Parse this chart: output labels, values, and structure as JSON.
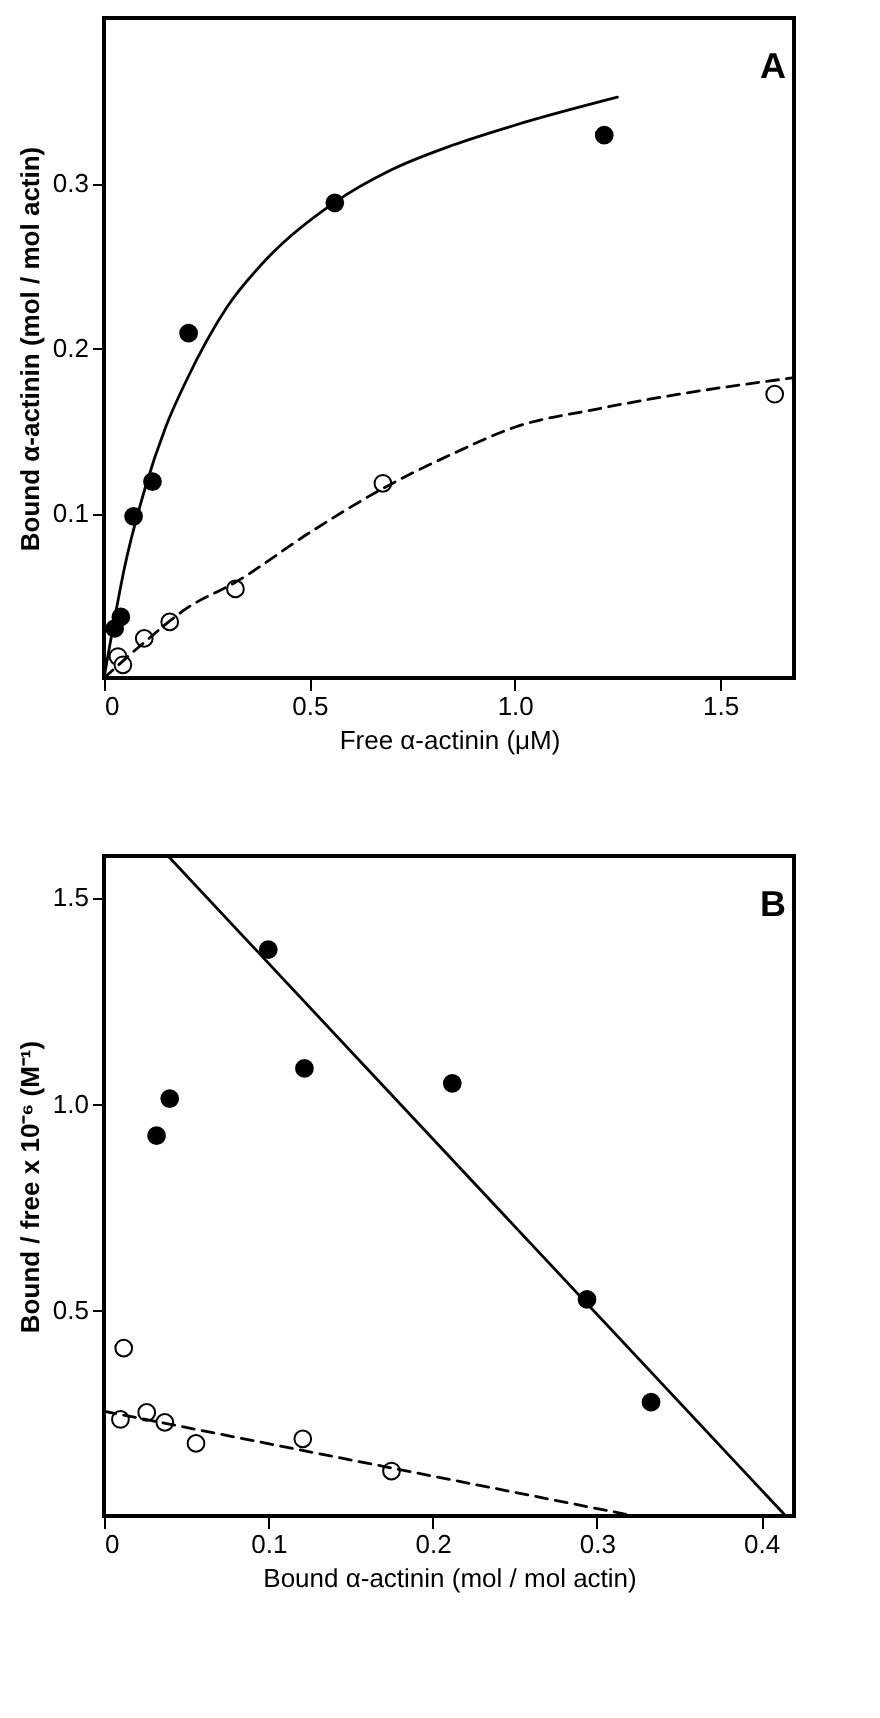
{
  "chart_data": [
    {
      "type": "scatter",
      "xlabel": "Free α-actinin (μM)",
      "ylabel": "Bound α-actinin (mol / mol actin)",
      "annotations": [
        "A"
      ],
      "xlim": [
        0,
        1.68
      ],
      "ylim": [
        0,
        0.4
      ],
      "xticks": [
        0,
        {
          "value": 0.5,
          "label": "0.5"
        },
        {
          "value": 1,
          "label": "1.0"
        },
        {
          "value": 1.5,
          "label": "1.5"
        }
      ],
      "yticks": [
        0.1,
        0.2,
        0.3
      ],
      "grid": false,
      "series": [
        {
          "marker": "circle",
          "color": "#000000",
          "x": [
            0.026,
            0.041,
            0.072,
            0.118,
            0.206,
            0.562,
            1.218
          ],
          "values": [
            0.03,
            0.037,
            0.098,
            0.119,
            0.209,
            0.288,
            0.329
          ]
        },
        {
          "marker": "circle",
          "color": "#ffffff",
          "x": [
            0.034,
            0.046,
            0.098,
            0.16,
            0.32,
            0.679,
            1.633
          ],
          "values": [
            0.013,
            0.008,
            0.024,
            0.034,
            0.054,
            0.118,
            0.172
          ]
        },
        {
          "type": "line",
          "marker": "none",
          "line_style": "solid",
          "color": "#000000",
          "x": [
            0,
            0.02,
            0.05,
            0.1,
            0.15,
            0.2,
            0.3,
            0.4,
            0.56,
            0.7,
            0.85,
            1.0,
            1.25
          ],
          "values": [
            0,
            0.028,
            0.067,
            0.115,
            0.152,
            0.18,
            0.225,
            0.255,
            0.288,
            0.308,
            0.323,
            0.335,
            0.352
          ]
        },
        {
          "type": "line",
          "marker": "none",
          "line_style": "dashed",
          "color": "#000000",
          "x": [
            0,
            0.1,
            0.2,
            0.32,
            0.5,
            0.68,
            0.85,
            1.0,
            1.2,
            1.4,
            1.68
          ],
          "values": [
            0,
            0.022,
            0.042,
            0.058,
            0.088,
            0.115,
            0.136,
            0.152,
            0.163,
            0.172,
            0.182
          ]
        }
      ]
    },
    {
      "type": "scatter",
      "xlabel": "Bound α-actinin (mol / mol actin)",
      "ylabel": "Bound / free x 10⁻⁶  (M⁻¹)",
      "annotations": [
        "B"
      ],
      "xlim": [
        0,
        0.42
      ],
      "ylim": [
        0,
        1.6
      ],
      "xticks": [
        0,
        0.1,
        0.2,
        0.3,
        0.4
      ],
      "yticks": [
        0.5,
        {
          "value": 1,
          "label": "1.0"
        },
        1.5
      ],
      "grid": false,
      "series": [
        {
          "marker": "circle",
          "color": "#000000",
          "x": [
            0.032,
            0.04,
            0.1,
            0.122,
            0.212,
            0.294,
            0.333
          ],
          "values": [
            0.922,
            1.012,
            1.373,
            1.085,
            1.049,
            0.525,
            0.276
          ]
        },
        {
          "marker": "circle",
          "color": "#ffffff",
          "x": [
            0.012,
            0.01,
            0.026,
            0.037,
            0.056,
            0.121,
            0.175
          ],
          "values": [
            0.407,
            0.234,
            0.251,
            0.227,
            0.176,
            0.187,
            0.109
          ]
        },
        {
          "type": "line",
          "marker": "none",
          "line_style": "solid",
          "color": "#000000",
          "x": [
            0.039,
            0.415
          ],
          "values": [
            1.6,
            0
          ]
        },
        {
          "type": "line",
          "marker": "none",
          "line_style": "dashed",
          "color": "#000000",
          "x": [
            0,
            0.323
          ],
          "values": [
            0.254,
            0
          ]
        }
      ]
    }
  ]
}
